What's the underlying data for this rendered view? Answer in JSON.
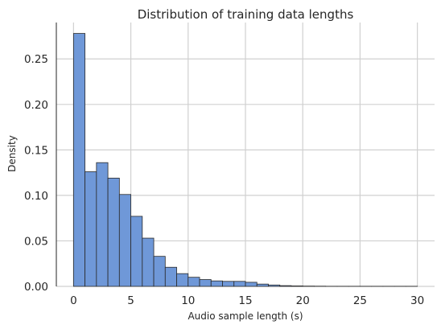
{
  "chart_data": {
    "type": "bar",
    "title": "Distribution of training data lengths",
    "xlabel": "Audio sample length (s)",
    "ylabel": "Density",
    "xlim": [
      -1.5,
      31.5
    ],
    "ylim": [
      0,
      0.29
    ],
    "xticks": [
      0,
      5,
      10,
      15,
      20,
      25,
      30
    ],
    "xtick_labels": [
      "0",
      "5",
      "10",
      "15",
      "20",
      "25",
      "30"
    ],
    "yticks": [
      0.0,
      0.05,
      0.1,
      0.15,
      0.2,
      0.25
    ],
    "ytick_labels": [
      "0.00",
      "0.05",
      "0.10",
      "0.15",
      "0.20",
      "0.25"
    ],
    "grid": true,
    "bin_width": 1,
    "bins": [
      {
        "start": 0,
        "end": 1,
        "value": 0.278
      },
      {
        "start": 1,
        "end": 2,
        "value": 0.126
      },
      {
        "start": 2,
        "end": 3,
        "value": 0.136
      },
      {
        "start": 3,
        "end": 4,
        "value": 0.119
      },
      {
        "start": 4,
        "end": 5,
        "value": 0.101
      },
      {
        "start": 5,
        "end": 6,
        "value": 0.077
      },
      {
        "start": 6,
        "end": 7,
        "value": 0.053
      },
      {
        "start": 7,
        "end": 8,
        "value": 0.033
      },
      {
        "start": 8,
        "end": 9,
        "value": 0.021
      },
      {
        "start": 9,
        "end": 10,
        "value": 0.014
      },
      {
        "start": 10,
        "end": 11,
        "value": 0.01
      },
      {
        "start": 11,
        "end": 12,
        "value": 0.0075
      },
      {
        "start": 12,
        "end": 13,
        "value": 0.006
      },
      {
        "start": 13,
        "end": 14,
        "value": 0.0055
      },
      {
        "start": 14,
        "end": 15,
        "value": 0.0055
      },
      {
        "start": 15,
        "end": 16,
        "value": 0.0045
      },
      {
        "start": 16,
        "end": 17,
        "value": 0.0025
      },
      {
        "start": 17,
        "end": 18,
        "value": 0.0015
      },
      {
        "start": 18,
        "end": 19,
        "value": 0.0008
      },
      {
        "start": 19,
        "end": 20,
        "value": 0.0005
      },
      {
        "start": 20,
        "end": 21,
        "value": 0.0003
      },
      {
        "start": 21,
        "end": 22,
        "value": 0.0002
      },
      {
        "start": 22,
        "end": 23,
        "value": 0.0001
      },
      {
        "start": 23,
        "end": 24,
        "value": 0.0001
      },
      {
        "start": 24,
        "end": 25,
        "value": 0.0001
      },
      {
        "start": 25,
        "end": 26,
        "value": 0.0001
      },
      {
        "start": 26,
        "end": 27,
        "value": 0.0001
      },
      {
        "start": 27,
        "end": 28,
        "value": 0.0001
      },
      {
        "start": 28,
        "end": 29,
        "value": 0.0001
      },
      {
        "start": 29,
        "end": 30,
        "value": 0.0001
      }
    ],
    "colors": {
      "bar_fill": "#6f98d8",
      "bar_edge": "#2a2a2a",
      "grid": "#d0d0d0",
      "text": "#262626"
    }
  }
}
